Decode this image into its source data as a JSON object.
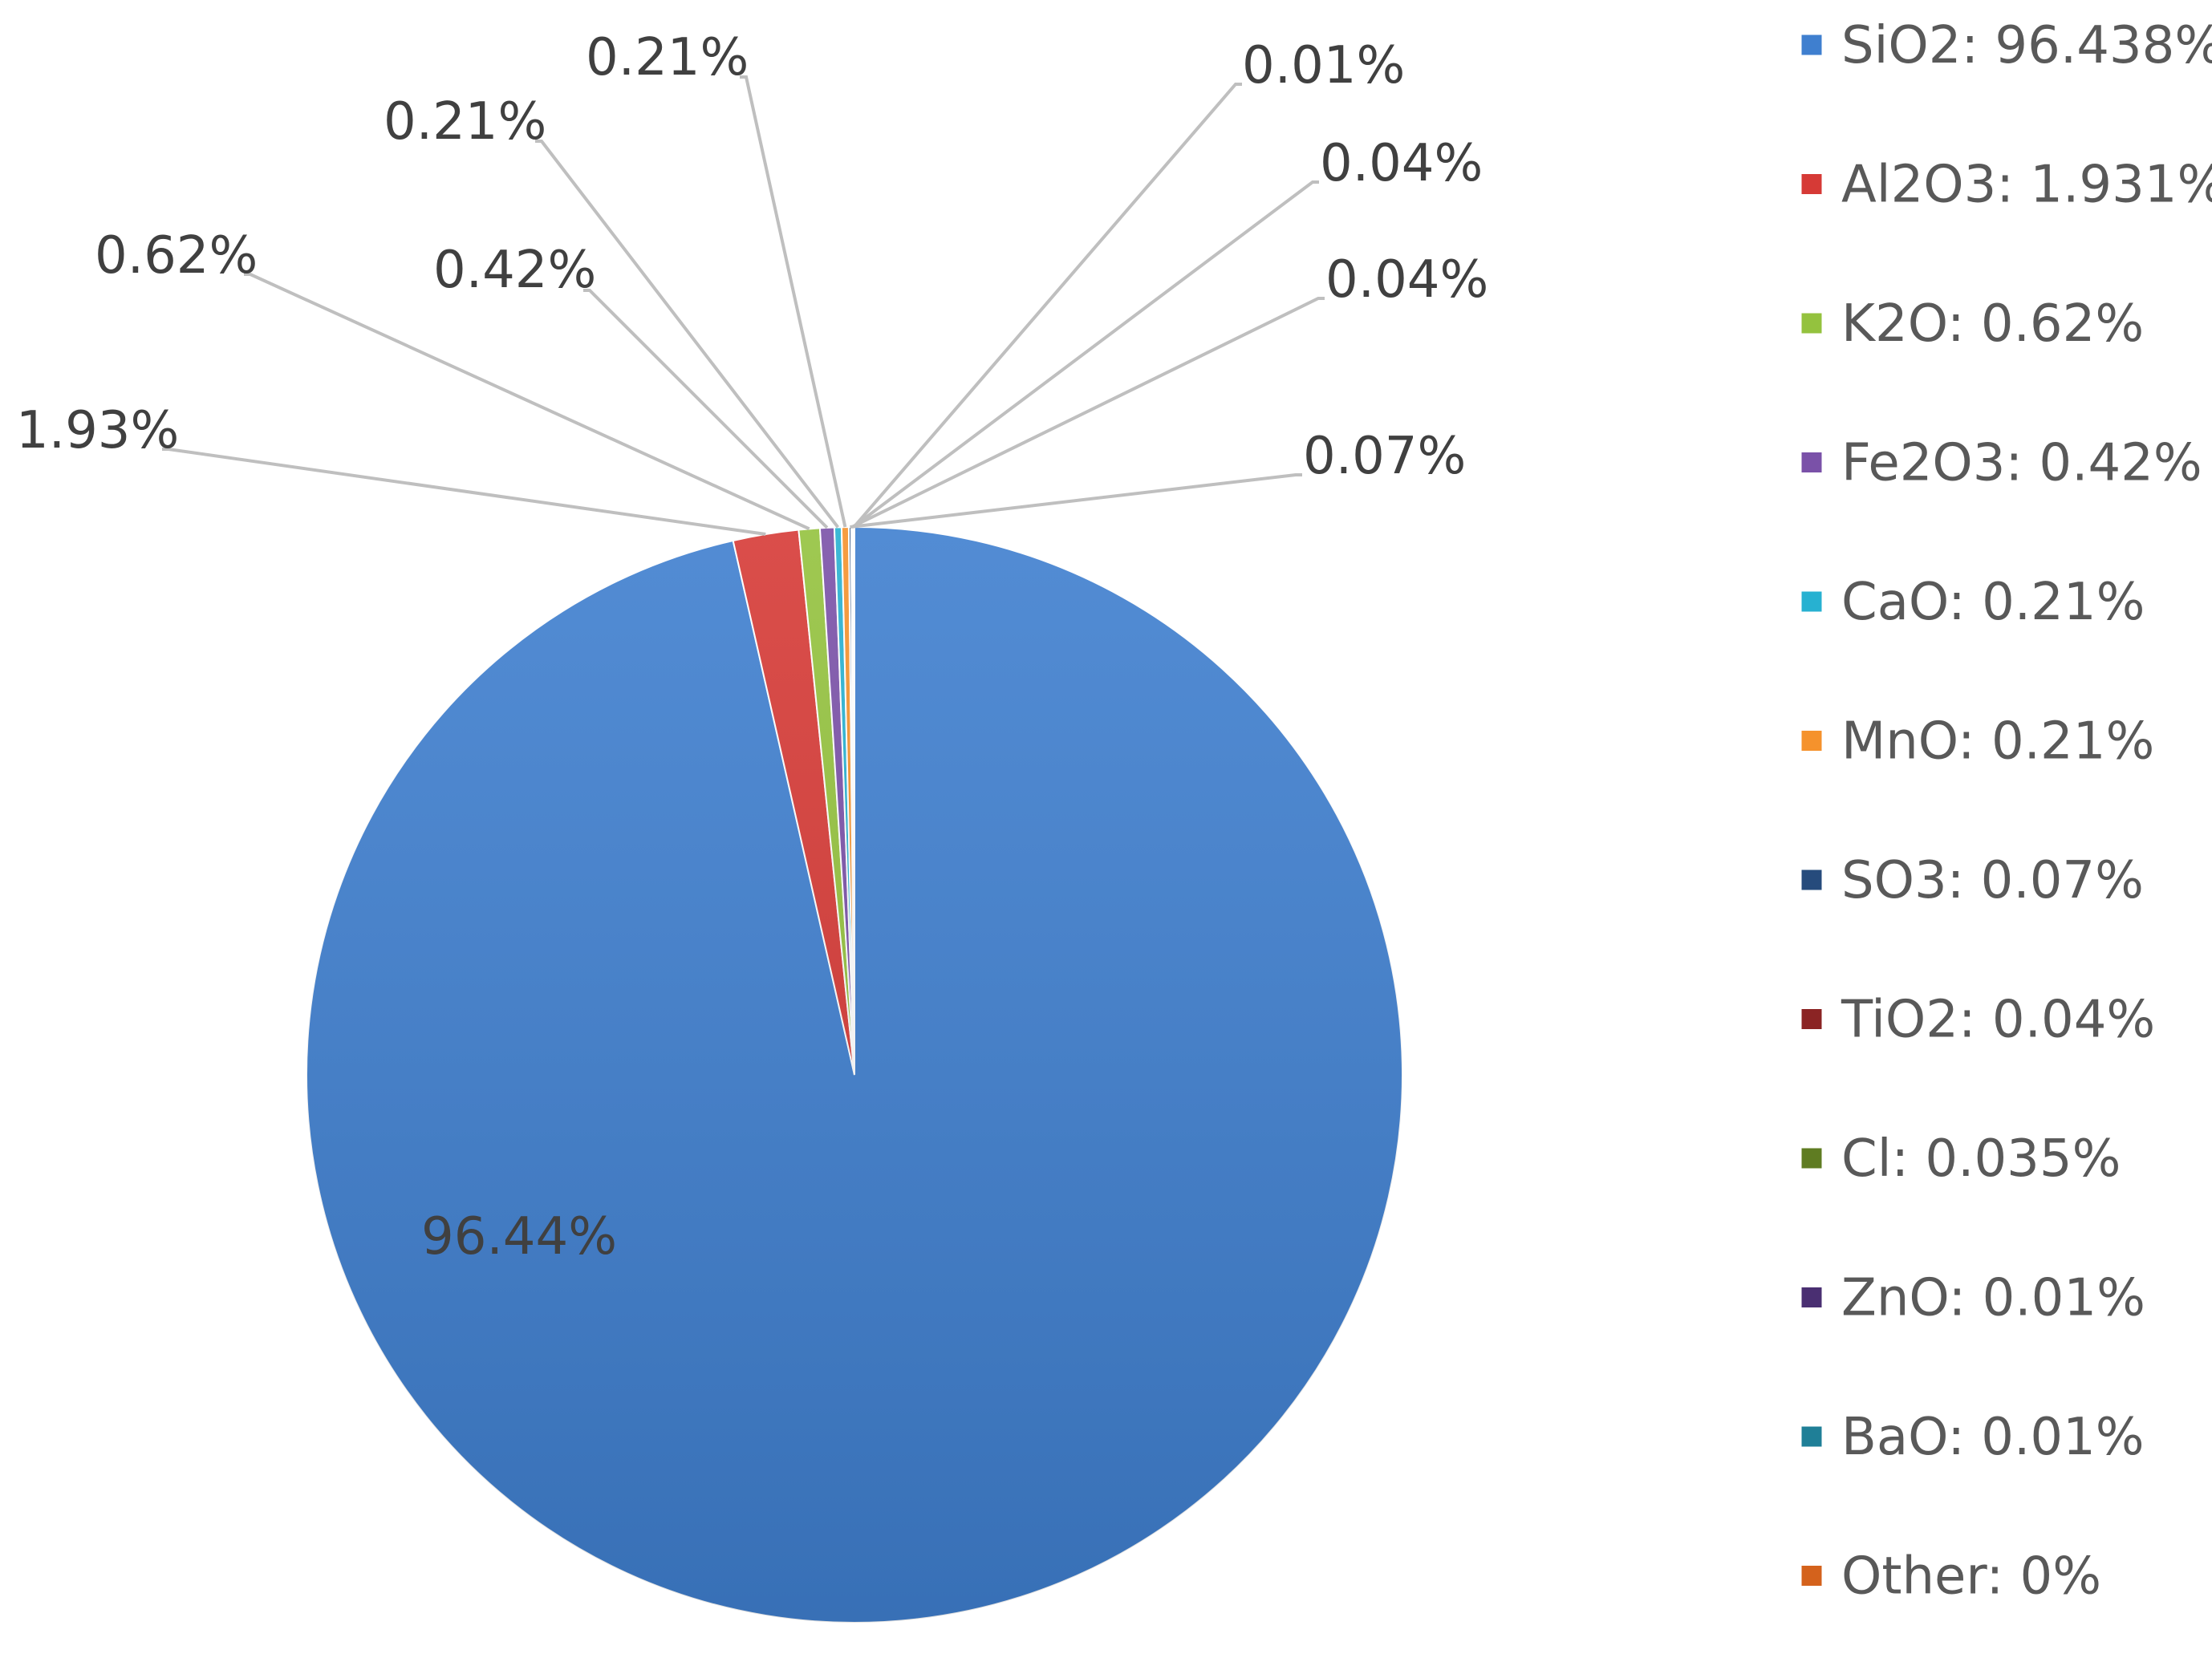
{
  "chart_data": {
    "type": "pie",
    "title": "",
    "slices": [
      {
        "name": "SiO2",
        "value": 96.438,
        "label": "96.44%",
        "legend": "SiO2: 96.438%",
        "color": "#3f7fcf"
      },
      {
        "name": "Al2O3",
        "value": 1.931,
        "label": "1.93%",
        "legend": "Al2O3: 1.931%",
        "color": "#d63a36"
      },
      {
        "name": "K2O",
        "value": 0.62,
        "label": "0.62%",
        "legend": "K2O: 0.62%",
        "color": "#94c23e"
      },
      {
        "name": "Fe2O3",
        "value": 0.42,
        "label": "0.42%",
        "legend": "Fe2O3: 0.42%",
        "color": "#7a51a8"
      },
      {
        "name": "CaO",
        "value": 0.21,
        "label": "0.21%",
        "legend": "CaO: 0.21%",
        "color": "#27b1d1"
      },
      {
        "name": "MnO",
        "value": 0.21,
        "label": "0.21%",
        "legend": "MnO: 0.21%",
        "color": "#f5922c"
      },
      {
        "name": "SO3",
        "value": 0.07,
        "label": "0.07%",
        "legend": "SO3: 0.07%",
        "color": "#264b7c"
      },
      {
        "name": "TiO2",
        "value": 0.04,
        "label": "0.04%",
        "legend": "TiO2: 0.04%",
        "color": "#8b2424"
      },
      {
        "name": "Cl",
        "value": 0.035,
        "label": "0.04%",
        "legend": "Cl: 0.035%",
        "color": "#5f7c22"
      },
      {
        "name": "ZnO",
        "value": 0.01,
        "label": "0.01%",
        "legend": "ZnO: 0.01%",
        "color": "#4a2f72"
      },
      {
        "name": "BaO",
        "value": 0.01,
        "label": "",
        "legend": "BaO: 0.01%",
        "color": "#1f7f97"
      },
      {
        "name": "Other",
        "value": 0,
        "label": "",
        "legend": "Other: 0%",
        "color": "#d4621c"
      }
    ],
    "legend_position": "right",
    "start_angle_deg": 0,
    "direction": "clockwise"
  }
}
